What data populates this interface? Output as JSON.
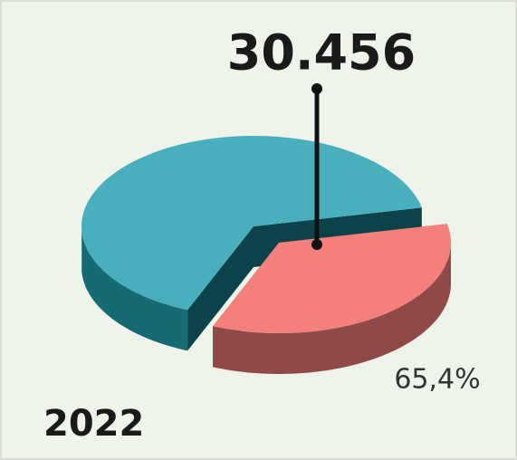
{
  "chart_data": {
    "type": "pie",
    "title": "2022",
    "annotation": "30.456",
    "values": [
      65.4,
      34.6
    ],
    "value_labels": [
      "65,4%",
      null
    ],
    "colors": [
      "#4aafbd",
      "#f47f7b"
    ],
    "side_colors": [
      "#156a73",
      "#8f4a47"
    ],
    "cut_colors": [
      "#0c434a",
      "#6e3634"
    ]
  }
}
